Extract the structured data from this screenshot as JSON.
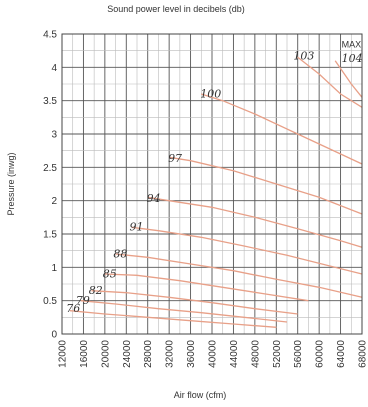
{
  "chart_data": {
    "type": "line",
    "title": "Sound power level in decibels (db)",
    "xlabel": "Air flow (cfm)",
    "ylabel": "Pressure (inwg)",
    "xlim": [
      12000,
      68000
    ],
    "ylim": [
      0,
      4.5
    ],
    "x_major_ticks": [
      12000,
      16000,
      20000,
      24000,
      28000,
      32000,
      36000,
      40000,
      44000,
      48000,
      52000,
      56000,
      60000,
      64000,
      68000
    ],
    "x_minor_step": 2000,
    "y_major_ticks": [
      0,
      0.5,
      1,
      1.5,
      2,
      2.5,
      3,
      3.5,
      4,
      4.5
    ],
    "y_minor_step": 0.25,
    "grid": true,
    "line_color": "#e8a088",
    "series": [
      {
        "name": "76",
        "x": [
          13500,
          20000,
          28000,
          36000,
          44000,
          52000
        ],
        "y": [
          0.35,
          0.3,
          0.25,
          0.2,
          0.15,
          0.1
        ]
      },
      {
        "name": "79",
        "x": [
          15500,
          22000,
          30000,
          38000,
          46000,
          54000
        ],
        "y": [
          0.5,
          0.45,
          0.38,
          0.32,
          0.25,
          0.18
        ]
      },
      {
        "name": "82",
        "x": [
          17500,
          24000,
          32000,
          40000,
          48000,
          56000
        ],
        "y": [
          0.65,
          0.62,
          0.55,
          0.47,
          0.38,
          0.3
        ]
      },
      {
        "name": "85",
        "x": [
          20000,
          26000,
          34000,
          42000,
          50000,
          58000
        ],
        "y": [
          0.9,
          0.88,
          0.8,
          0.7,
          0.6,
          0.5
        ]
      },
      {
        "name": "88",
        "x": [
          22000,
          28000,
          36000,
          44000,
          52000,
          60000,
          68000
        ],
        "y": [
          1.2,
          1.15,
          1.05,
          0.95,
          0.82,
          0.7,
          0.55
        ]
      },
      {
        "name": "91",
        "x": [
          25000,
          30000,
          38000,
          46000,
          54000,
          62000,
          68000
        ],
        "y": [
          1.6,
          1.55,
          1.45,
          1.32,
          1.18,
          1.02,
          0.9
        ]
      },
      {
        "name": "94",
        "x": [
          28000,
          32000,
          40000,
          48000,
          56000,
          64000,
          68000
        ],
        "y": [
          2.05,
          2.0,
          1.9,
          1.75,
          1.58,
          1.4,
          1.3
        ]
      },
      {
        "name": "97",
        "x": [
          32000,
          36000,
          44000,
          52000,
          60000,
          68000
        ],
        "y": [
          2.65,
          2.6,
          2.45,
          2.25,
          2.05,
          1.8
        ]
      },
      {
        "name": "100",
        "x": [
          38000,
          42000,
          48000,
          56000,
          64000,
          68000
        ],
        "y": [
          3.6,
          3.5,
          3.3,
          3.0,
          2.7,
          2.55
        ]
      },
      {
        "name": "103",
        "x": [
          56000,
          60000,
          64000,
          68000
        ],
        "y": [
          4.15,
          3.9,
          3.6,
          3.4
        ]
      },
      {
        "name": "MAX",
        "x": [
          63000,
          66000,
          68000
        ],
        "y": [
          4.1,
          3.75,
          3.55
        ]
      }
    ],
    "curve_labels": [
      {
        "text": "76",
        "x": 12800,
        "y": 0.33
      },
      {
        "text": "79",
        "x": 14600,
        "y": 0.45
      },
      {
        "text": "82",
        "x": 17000,
        "y": 0.6
      },
      {
        "text": "85",
        "x": 19600,
        "y": 0.85
      },
      {
        "text": "88",
        "x": 21600,
        "y": 1.15
      },
      {
        "text": "91",
        "x": 24600,
        "y": 1.55
      },
      {
        "text": "94",
        "x": 27800,
        "y": 1.98
      },
      {
        "text": "97",
        "x": 31800,
        "y": 2.58
      },
      {
        "text": "100",
        "x": 37800,
        "y": 3.55
      },
      {
        "text": "103",
        "x": 55200,
        "y": 4.12
      },
      {
        "text": "MAX",
        "x": 64200,
        "y": 4.3
      },
      {
        "text": "104",
        "x": 64200,
        "y": 4.08
      }
    ]
  }
}
